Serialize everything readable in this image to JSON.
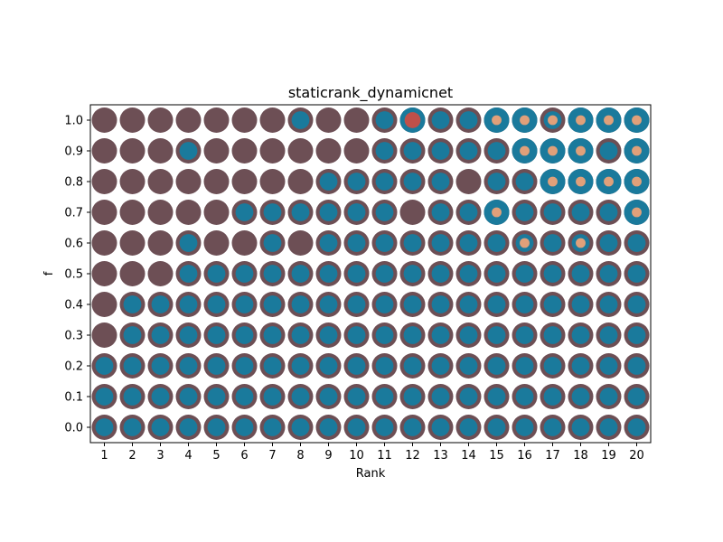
{
  "chart_data": {
    "type": "scatter",
    "title": "staticrank_dynamicnet",
    "xlabel": "Rank",
    "ylabel": "f",
    "x_ticks": [
      1,
      2,
      3,
      4,
      5,
      6,
      7,
      8,
      9,
      10,
      11,
      12,
      13,
      14,
      15,
      16,
      17,
      18,
      19,
      20
    ],
    "y_ticks": [
      "0.0",
      "0.1",
      "0.2",
      "0.3",
      "0.4",
      "0.5",
      "0.6",
      "0.7",
      "0.8",
      "0.9",
      "1.0"
    ],
    "xlim": [
      0.5,
      20.5
    ],
    "ylim": [
      -0.05,
      1.05
    ],
    "grid": false,
    "colors": {
      "outer": "#6d4f55",
      "middle": "#1a7a9c",
      "inner": "#e0a07a",
      "inner_highlight": "#c0504a"
    },
    "layers": [
      "outer",
      "middle",
      "inner"
    ],
    "rows": [
      {
        "f": 0.0,
        "outer": [
          1,
          1,
          1,
          1,
          1,
          1,
          1,
          1,
          1,
          1,
          1,
          1,
          1,
          1,
          1,
          1,
          1,
          1,
          1,
          1
        ],
        "middle": [
          0.5,
          0.5,
          0.5,
          0.5,
          0.5,
          0.5,
          0.5,
          0.5,
          0.5,
          0.5,
          0.5,
          0.5,
          0.5,
          0.5,
          0.5,
          0.5,
          0.5,
          0.5,
          0.5,
          0.5
        ],
        "inner": [
          0,
          0,
          0,
          0,
          0,
          0,
          0,
          0,
          0,
          0,
          0,
          0,
          0,
          0,
          0,
          0,
          0,
          0,
          0,
          0
        ]
      },
      {
        "f": 0.1,
        "outer": [
          1,
          1,
          1,
          1,
          1,
          1,
          1,
          1,
          1,
          1,
          1,
          1,
          1,
          1,
          1,
          1,
          1,
          1,
          1,
          1
        ],
        "middle": [
          0.5,
          0.5,
          0.5,
          0.5,
          0.5,
          0.5,
          0.5,
          0.5,
          0.5,
          0.5,
          0.5,
          0.5,
          0.5,
          0.5,
          0.5,
          0.5,
          0.5,
          0.5,
          0.5,
          0.5
        ],
        "inner": [
          0,
          0,
          0,
          0,
          0,
          0,
          0,
          0,
          0,
          0,
          0,
          0,
          0,
          0,
          0,
          0,
          0,
          0,
          0,
          0
        ]
      },
      {
        "f": 0.2,
        "outer": [
          1,
          1,
          1,
          1,
          1,
          1,
          1,
          1,
          1,
          1,
          1,
          1,
          1,
          1,
          1,
          1,
          1,
          1,
          1,
          1
        ],
        "middle": [
          0.5,
          0.5,
          0.5,
          0.5,
          0.5,
          0.5,
          0.5,
          0.5,
          0.5,
          0.5,
          0.5,
          0.5,
          0.5,
          0.5,
          0.5,
          0.5,
          0.5,
          0.5,
          0.5,
          0.5
        ],
        "inner": [
          0,
          0,
          0,
          0,
          0,
          0,
          0,
          0,
          0,
          0,
          0,
          0,
          0,
          0,
          0,
          0,
          0,
          0,
          0,
          0
        ]
      },
      {
        "f": 0.3,
        "outer": [
          1,
          1,
          1,
          1,
          1,
          1,
          1,
          1,
          1,
          1,
          1,
          1,
          1,
          1,
          1,
          1,
          1,
          1,
          1,
          1
        ],
        "middle": [
          0,
          0.5,
          0.5,
          0.5,
          0.5,
          0.5,
          0.5,
          0.5,
          0.5,
          0.5,
          0.5,
          0.5,
          0.5,
          0.5,
          0.5,
          0.5,
          0.5,
          0.5,
          0.5,
          0.5
        ],
        "inner": [
          0,
          0,
          0,
          0,
          0,
          0,
          0,
          0,
          0,
          0,
          0,
          0,
          0,
          0,
          0,
          0,
          0,
          0,
          0,
          0
        ]
      },
      {
        "f": 0.4,
        "outer": [
          1,
          1,
          1,
          1,
          1,
          1,
          1,
          1,
          1,
          1,
          1,
          1,
          1,
          1,
          1,
          1,
          1,
          1,
          1,
          1
        ],
        "middle": [
          0,
          0.5,
          0.5,
          0.5,
          0.5,
          0.5,
          0.5,
          0.5,
          0.5,
          0.5,
          0.5,
          0.5,
          0.5,
          0.5,
          0.5,
          0.5,
          0.5,
          0.5,
          0.5,
          0.5
        ],
        "inner": [
          0,
          0,
          0,
          0,
          0,
          0,
          0,
          0,
          0,
          0,
          0,
          0,
          0,
          0,
          0,
          0,
          0,
          0,
          0,
          0
        ]
      },
      {
        "f": 0.5,
        "outer": [
          1,
          1,
          1,
          1,
          1,
          1,
          1,
          1,
          1,
          1,
          1,
          1,
          1,
          1,
          1,
          1,
          1,
          1,
          1,
          1
        ],
        "middle": [
          0,
          0,
          0,
          0.5,
          0.5,
          0.5,
          0.5,
          0.5,
          0.5,
          0.5,
          0.5,
          0.5,
          0.5,
          0.5,
          0.5,
          0.5,
          0.5,
          0.5,
          0.5,
          0.5
        ],
        "inner": [
          0,
          0,
          0,
          0,
          0,
          0,
          0,
          0,
          0,
          0,
          0,
          0,
          0,
          0,
          0,
          0,
          0,
          0,
          0,
          0
        ]
      },
      {
        "f": 0.6,
        "outer": [
          1,
          1,
          1,
          1,
          1,
          1,
          1,
          1,
          1,
          1,
          1,
          1,
          1,
          1,
          1,
          1,
          1,
          1,
          1,
          1
        ],
        "middle": [
          0,
          0,
          0,
          0.5,
          0,
          0,
          0.5,
          0,
          0.5,
          0.5,
          0.5,
          0.5,
          0.5,
          0.5,
          0.5,
          0.5,
          0.5,
          0.5,
          0.5,
          0.5
        ],
        "inner": [
          0,
          0,
          0,
          0,
          0,
          0,
          0,
          0,
          0,
          0,
          0,
          0,
          0,
          0,
          0,
          0.15,
          0,
          0.15,
          0,
          0
        ]
      },
      {
        "f": 0.7,
        "outer": [
          1,
          1,
          1,
          1,
          1,
          1,
          1,
          1,
          1,
          1,
          1,
          1,
          1,
          1,
          1,
          1,
          1,
          1,
          1,
          1
        ],
        "middle": [
          0,
          0,
          0,
          0,
          0,
          0.5,
          0.5,
          0.5,
          0.5,
          0.5,
          0.5,
          0,
          0.5,
          0.5,
          1,
          0.5,
          0.5,
          0.5,
          0.5,
          1
        ],
        "inner": [
          0,
          0,
          0,
          0,
          0,
          0,
          0,
          0,
          0,
          0,
          0,
          0,
          0,
          0,
          0.15,
          0,
          0,
          0,
          0,
          0.15
        ]
      },
      {
        "f": 0.8,
        "outer": [
          1,
          1,
          1,
          1,
          1,
          1,
          1,
          1,
          1,
          1,
          1,
          1,
          1,
          1,
          1,
          1,
          1,
          1,
          1,
          1
        ],
        "middle": [
          0,
          0,
          0,
          0,
          0,
          0,
          0,
          0,
          0.5,
          0.5,
          0.5,
          0.5,
          0.5,
          0,
          0.5,
          0.5,
          1,
          1,
          1,
          1
        ],
        "inner": [
          0,
          0,
          0,
          0,
          0,
          0,
          0,
          0,
          0,
          0,
          0,
          0,
          0,
          0,
          0,
          0,
          0.15,
          0.15,
          0.15,
          0.15
        ]
      },
      {
        "f": 0.9,
        "outer": [
          1,
          1,
          1,
          1,
          1,
          1,
          1,
          1,
          1,
          1,
          1,
          1,
          1,
          1,
          1,
          1,
          1,
          1,
          1,
          1
        ],
        "middle": [
          0,
          0,
          0,
          0.5,
          0,
          0,
          0,
          0,
          0,
          0,
          0.5,
          0.5,
          0.5,
          0.5,
          0.5,
          1,
          1,
          1,
          0.5,
          1
        ],
        "inner": [
          0,
          0,
          0,
          0,
          0,
          0,
          0,
          0,
          0,
          0,
          0,
          0,
          0,
          0,
          0,
          0.15,
          0.15,
          0.15,
          0,
          0.15
        ]
      },
      {
        "f": 1.0,
        "outer": [
          1,
          1,
          1,
          1,
          1,
          1,
          1,
          1,
          1,
          1,
          1,
          1,
          1,
          1,
          1,
          1,
          1,
          1,
          1,
          1
        ],
        "middle": [
          0,
          0,
          0,
          0,
          0,
          0,
          0,
          0.5,
          0,
          0,
          0.5,
          1,
          0.5,
          0.5,
          1,
          1,
          0.5,
          1,
          1,
          1
        ],
        "inner": [
          0,
          0,
          0,
          0,
          0,
          0,
          0,
          0,
          0,
          0,
          0,
          0.4,
          0,
          0,
          0.15,
          0.15,
          0.15,
          0.15,
          0.15,
          0.15
        ]
      }
    ]
  }
}
